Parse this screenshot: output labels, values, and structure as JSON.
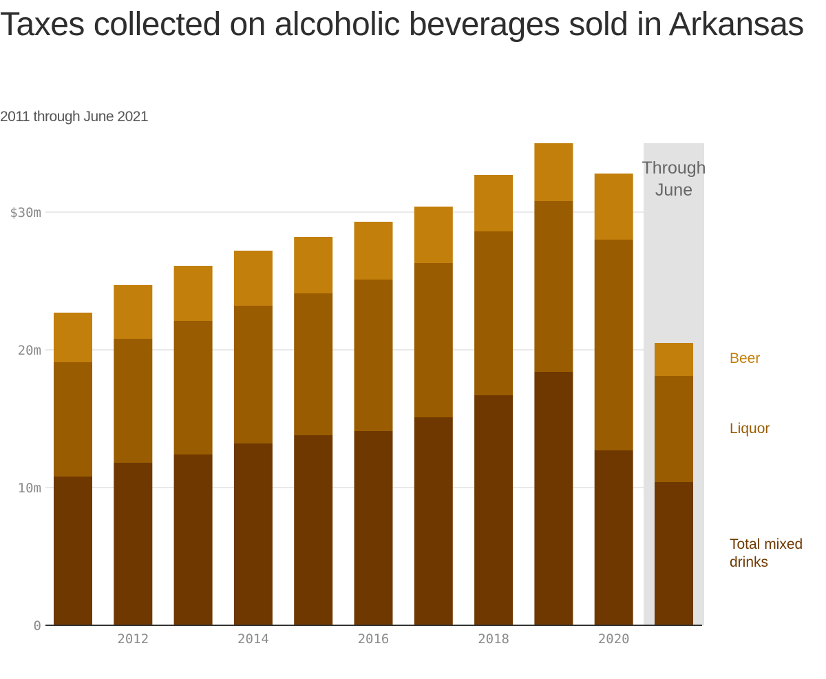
{
  "chart_data": {
    "type": "bar",
    "stacked": true,
    "title": "Taxes collected on alcoholic beverages sold in Arkansas",
    "subtitle": "2011 through June 2021",
    "categories": [
      2011,
      2012,
      2013,
      2014,
      2015,
      2016,
      2017,
      2018,
      2019,
      2020,
      2021
    ],
    "x_ticks": [
      2012,
      2014,
      2016,
      2018,
      2020
    ],
    "y_ticks": [
      {
        "value": 0,
        "label": "0"
      },
      {
        "value": 10,
        "label": "10m"
      },
      {
        "value": 20,
        "label": "20m"
      },
      {
        "value": 30,
        "label": "$30m"
      }
    ],
    "ylim": [
      0,
      35
    ],
    "unit": "millions of dollars",
    "grid": true,
    "legend_position": "right",
    "shaded_region": {
      "category": 2021,
      "label_lines": [
        "Through",
        "June"
      ],
      "color": "#e2e2e2"
    },
    "series": [
      {
        "name": "Total mixed drinks",
        "label_lines": [
          "Total mixed",
          "drinks"
        ],
        "color": "#6e3800",
        "values": [
          10.8,
          11.8,
          12.4,
          13.2,
          13.8,
          14.1,
          15.1,
          16.7,
          18.4,
          12.7,
          10.4
        ]
      },
      {
        "name": "Liquor",
        "label_lines": [
          "Liquor"
        ],
        "color": "#9a5c00",
        "values": [
          8.3,
          9.0,
          9.7,
          10.0,
          10.3,
          11.0,
          11.2,
          11.9,
          12.4,
          15.3,
          7.7
        ]
      },
      {
        "name": "Beer",
        "label_lines": [
          "Beer"
        ],
        "color": "#c27f0b",
        "values": [
          3.6,
          3.9,
          4.0,
          4.0,
          4.1,
          4.2,
          4.1,
          4.1,
          4.2,
          4.8,
          2.4
        ]
      }
    ]
  }
}
